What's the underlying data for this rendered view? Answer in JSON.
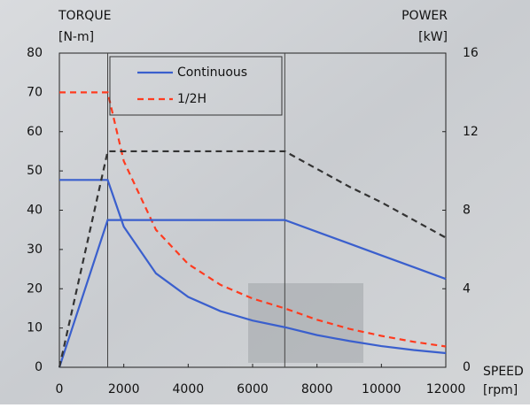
{
  "chart_data": {
    "type": "line",
    "y_label": "TORQUE",
    "y_unit": "[N-m]",
    "y2_label": "POWER",
    "y2_unit": "[kW]",
    "x_label": "SPEED",
    "x_unit": "[rpm]",
    "x": [
      0,
      1500,
      2000,
      3000,
      4000,
      5000,
      6000,
      7000,
      8000,
      9000,
      10000,
      11000,
      12000
    ],
    "series": [
      {
        "name": "Continuous",
        "color": "#3a5fcd",
        "dash": false,
        "values": [
          47.7,
          47.7,
          35.8,
          23.9,
          17.9,
          14.3,
          11.9,
          10.2,
          8.2,
          6.7,
          5.4,
          4.4,
          3.6
        ]
      },
      {
        "name": "1/2H",
        "color": "#ff3b1f",
        "dash": true,
        "values": [
          70,
          70,
          52.5,
          35,
          26.3,
          21,
          17.5,
          15,
          12.1,
          9.8,
          8,
          6.5,
          5.3
        ]
      },
      {
        "color": "#3a5fcd",
        "dash": false,
        "axis": "y2",
        "values": [
          0,
          7.5,
          7.5,
          7.5,
          7.5,
          7.5,
          7.5,
          7.5,
          6.9,
          6.3,
          5.7,
          5.1,
          4.5
        ]
      },
      {
        "color": "#333333",
        "dash": true,
        "axis": "y2",
        "values": [
          0,
          11,
          11,
          11,
          11,
          11,
          11,
          11,
          10.1,
          9.2,
          8.4,
          7.5,
          6.6
        ]
      }
    ],
    "xlim": [
      0,
      12000
    ],
    "xticks": [
      0,
      2000,
      4000,
      6000,
      8000,
      10000,
      12000
    ],
    "ylim": [
      0,
      80
    ],
    "yticks": [
      0,
      10,
      20,
      30,
      40,
      50,
      60,
      70,
      80
    ],
    "y2lim": [
      0,
      16
    ],
    "y2ticks": [
      0,
      4,
      8,
      12,
      16
    ],
    "grid": false,
    "legend": "top"
  }
}
